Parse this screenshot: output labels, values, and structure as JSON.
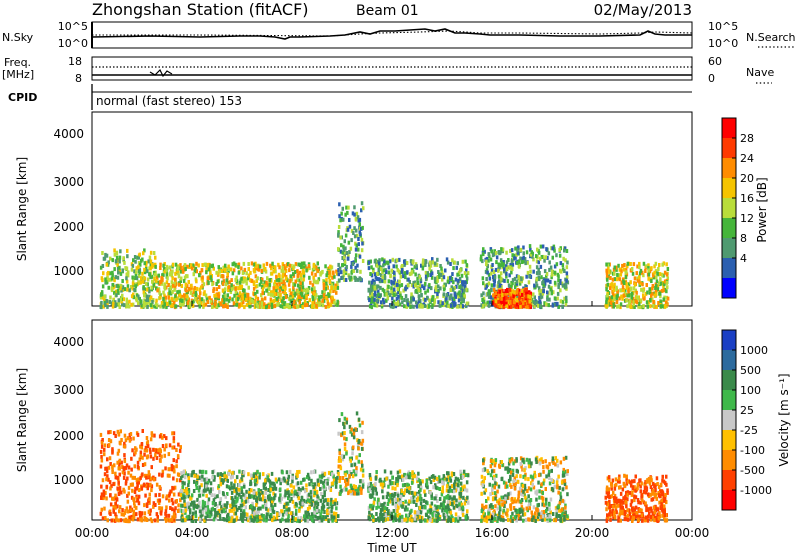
{
  "header": {
    "title": "Zhongshan Station (fitACF)",
    "beam": "Beam 01",
    "date": "02/May/2013"
  },
  "strip_nsky": {
    "left_label": "N.Sky",
    "right_label": "N.Search",
    "ticks": [
      "10^5",
      "10^0"
    ],
    "right_ticks": [
      "10^5",
      "10^0"
    ]
  },
  "strip_freq": {
    "left_label_1": "Freq.",
    "left_label_2": "[MHz]",
    "right_label": "Nave",
    "ticks": [
      "18",
      "8"
    ],
    "right_ticks": [
      "60",
      "0"
    ]
  },
  "strip_cpid": {
    "left_label": "CPID",
    "text": "normal (fast stereo) 153"
  },
  "power_panel": {
    "ylabel": "Slant Range [km]",
    "yticks": [
      "4000",
      "3000",
      "2000",
      "1000"
    ],
    "colorbar_label": "Power [dB]",
    "colorbar_ticks": [
      "28",
      "24",
      "20",
      "16",
      "12",
      "8",
      "4"
    ],
    "colorbar_colors": [
      "#ff0000",
      "#ff3a00",
      "#ff8c00",
      "#f5c400",
      "#b9dd3a",
      "#45b53a",
      "#4f9a70",
      "#2b5fb0",
      "#0000ff"
    ]
  },
  "velocity_panel": {
    "ylabel": "Slant Range [km]",
    "yticks": [
      "4000",
      "3000",
      "2000",
      "1000"
    ],
    "colorbar_label": "Velocity [m s⁻¹]",
    "colorbar_ticks": [
      "1000",
      "500",
      "100",
      "25",
      "-25",
      "-100",
      "-500",
      "-1000"
    ],
    "colorbar_colors": [
      "#1a3fc4",
      "#2c6b9e",
      "#3a8a4a",
      "#3fb84a",
      "#c8c8c8",
      "#ffc000",
      "#ff8c00",
      "#ff4000",
      "#ff0000"
    ]
  },
  "x_axis": {
    "ticks": [
      "00:00",
      "04:00",
      "08:00",
      "12:00",
      "16:00",
      "20:00",
      "00:00"
    ],
    "label": "Time UT"
  },
  "chart_data": [
    {
      "type": "heatmap",
      "quantity": "Power",
      "unit": "dB",
      "xlabel": "Time UT",
      "ylabel": "Slant Range [km]",
      "xlim": [
        0,
        24
      ],
      "ylim": [
        180,
        4600
      ],
      "color_scale_ticks": [
        4,
        8,
        12,
        16,
        20,
        24,
        28
      ],
      "regions": [
        {
          "t_start": 0.3,
          "t_end": 2.5,
          "range_low": 200,
          "range_high": 1500,
          "typical": 12
        },
        {
          "t_start": 2.5,
          "t_end": 9.8,
          "range_low": 200,
          "range_high": 1200,
          "typical": 16
        },
        {
          "t_start": 9.8,
          "t_end": 10.8,
          "range_low": 800,
          "range_high": 2600,
          "typical": 8
        },
        {
          "t_start": 11.0,
          "t_end": 15.0,
          "range_low": 200,
          "range_high": 1300,
          "typical": 8
        },
        {
          "t_start": 15.5,
          "t_end": 19.0,
          "range_low": 200,
          "range_high": 1600,
          "typical": 8
        },
        {
          "t_start": 16.0,
          "t_end": 17.5,
          "range_low": 200,
          "range_high": 600,
          "typical": 24
        },
        {
          "t_start": 20.5,
          "t_end": 23.0,
          "range_low": 200,
          "range_high": 1200,
          "typical": 16
        }
      ]
    },
    {
      "type": "heatmap",
      "quantity": "Velocity",
      "unit": "m s⁻¹",
      "xlabel": "Time UT",
      "ylabel": "Slant Range [km]",
      "xlim": [
        0,
        24
      ],
      "ylim": [
        180,
        4600
      ],
      "color_scale_ticks": [
        1000,
        500,
        100,
        25,
        -25,
        -100,
        -500,
        -1000
      ],
      "regions": [
        {
          "t_start": 0.3,
          "t_end": 3.5,
          "range_low": 200,
          "range_high": 2200,
          "typical": -500
        },
        {
          "t_start": 3.5,
          "t_end": 9.8,
          "range_low": 200,
          "range_high": 1300,
          "typical": 100
        },
        {
          "t_start": 9.8,
          "t_end": 10.8,
          "range_low": 800,
          "range_high": 2600,
          "typical": 0
        },
        {
          "t_start": 11.0,
          "t_end": 15.0,
          "range_low": 200,
          "range_high": 1300,
          "typical": 100
        },
        {
          "t_start": 15.5,
          "t_end": 19.0,
          "range_low": 200,
          "range_high": 1600,
          "typical": 0
        },
        {
          "t_start": 20.5,
          "t_end": 23.0,
          "range_low": 200,
          "range_high": 1200,
          "typical": -500
        }
      ]
    }
  ]
}
